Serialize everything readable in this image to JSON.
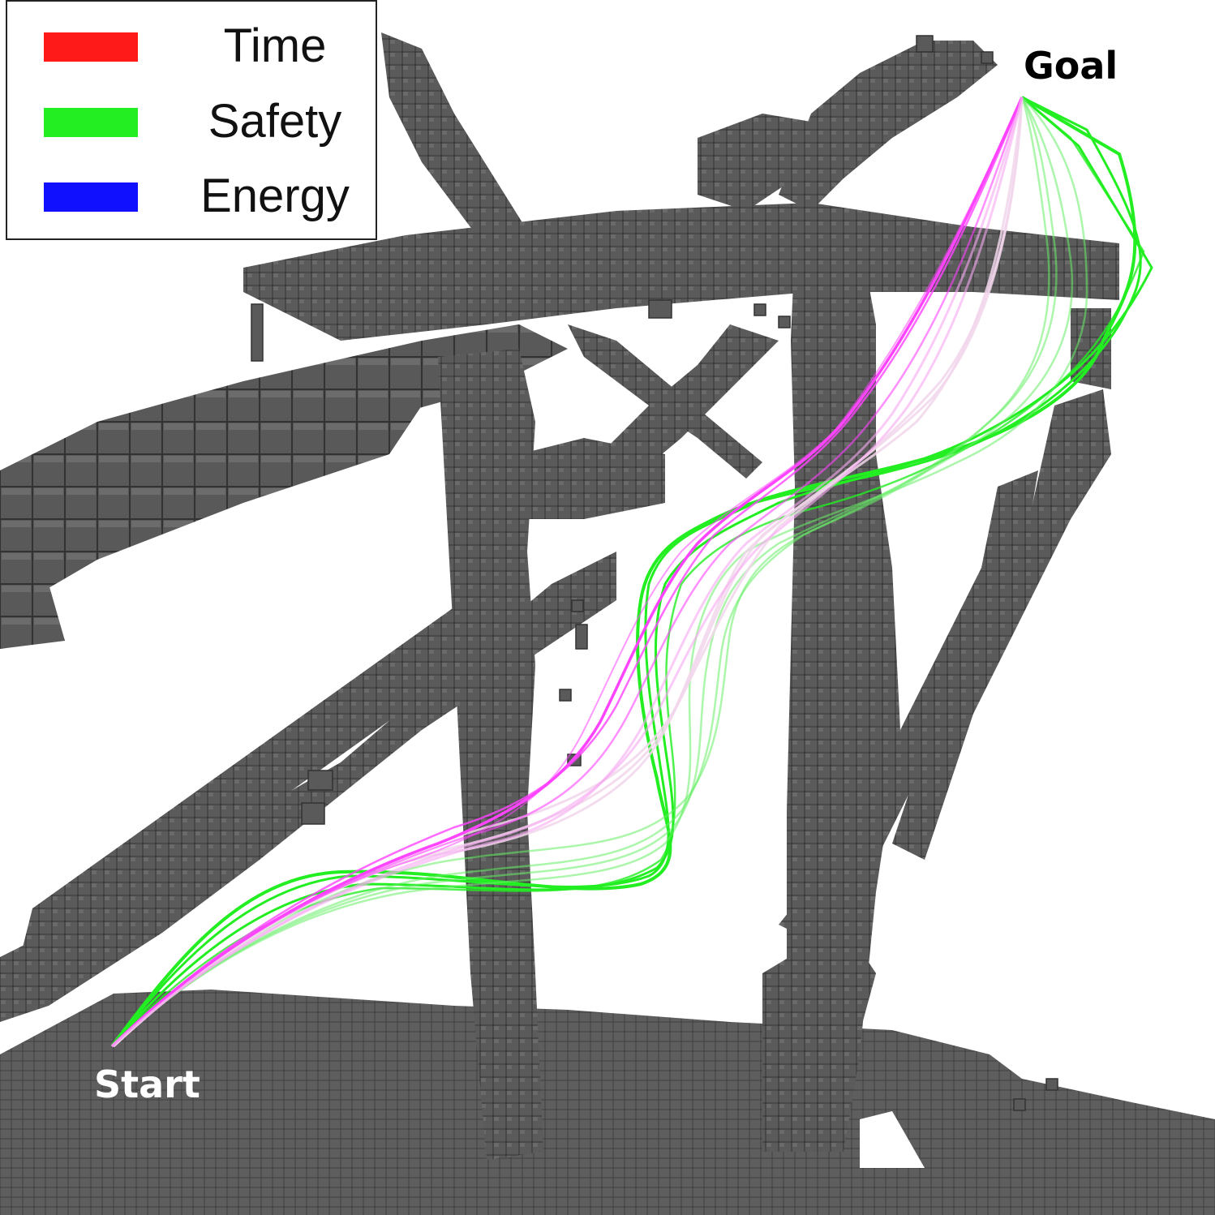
{
  "legend": {
    "items": [
      {
        "label": "Time",
        "color": "#ff1a1a"
      },
      {
        "label": "Safety",
        "color": "#22ee22"
      },
      {
        "label": "Energy",
        "color": "#1010ff"
      }
    ]
  },
  "markers": {
    "start": "Start",
    "goal": "Goal"
  },
  "colors": {
    "voxel": "#5a5a5a",
    "voxel_edge": "#3c3c3c",
    "path_time_safety": "#ff44ff",
    "path_safety": "#22ee22",
    "path_blend": "#f0d8e8"
  }
}
